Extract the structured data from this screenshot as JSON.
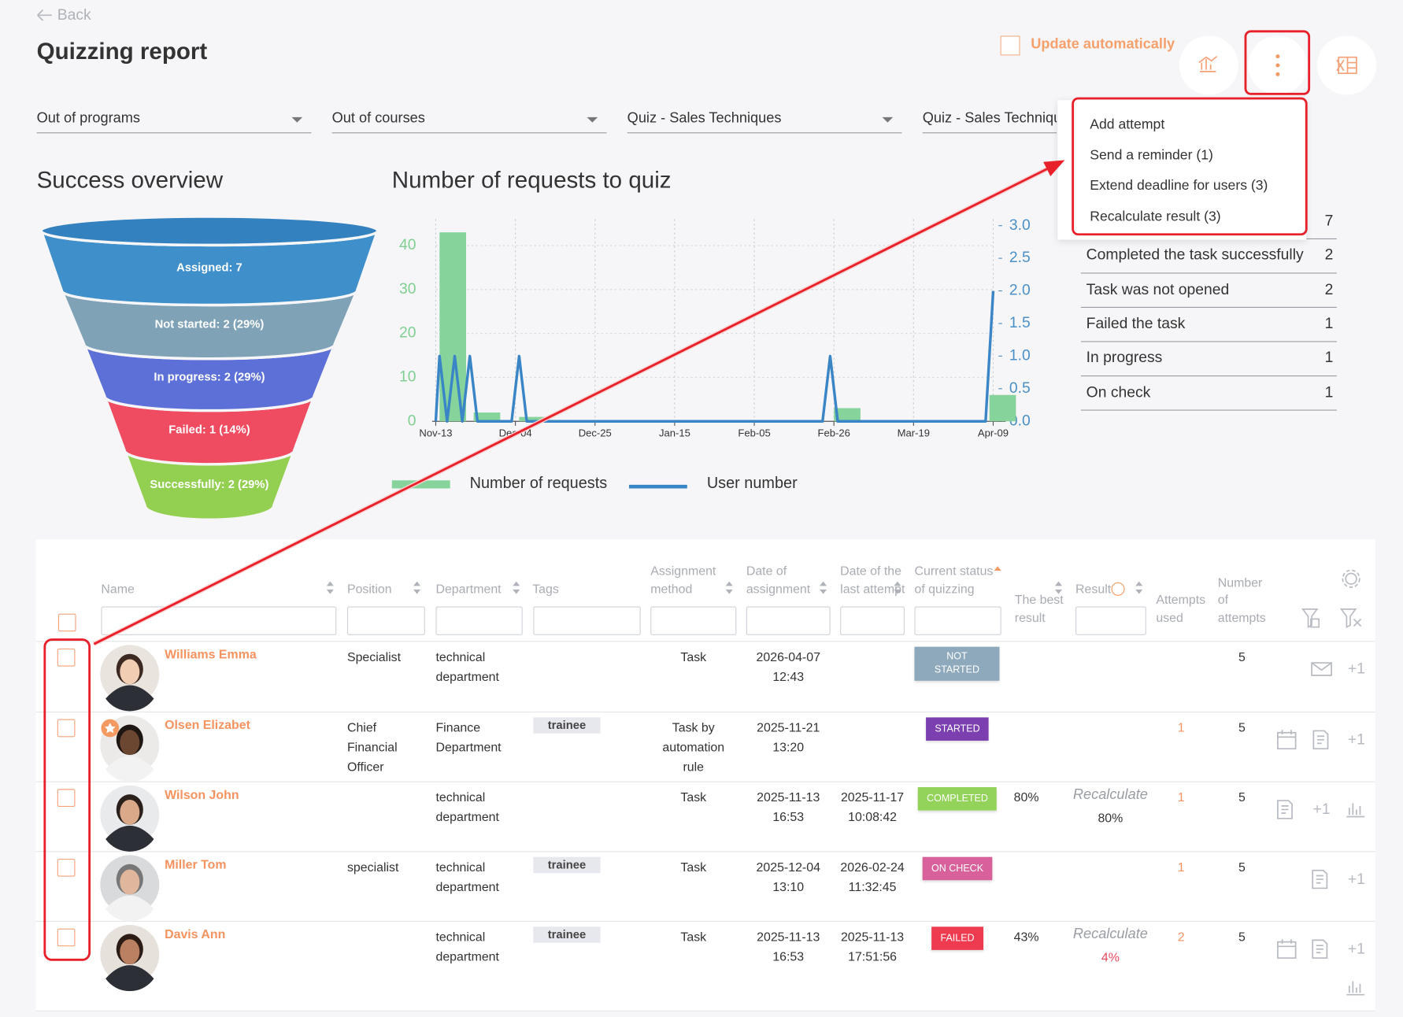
{
  "header": {
    "back": "Back",
    "title": "Quizzing report",
    "auto_update": "Update automatically"
  },
  "filters": [
    "Out of programs",
    "Out of courses",
    "Quiz - Sales Techniques",
    "Quiz - Sales Techniques"
  ],
  "menu": [
    "Add attempt",
    "Send a reminder (1)",
    "Extend deadline for users (3)",
    "Recalculate result (3)"
  ],
  "funnel": {
    "title": "Success overview",
    "segments": [
      {
        "label": "Assigned: 7",
        "color": "#3f8fcb"
      },
      {
        "label": "Not started: 2 (29%)",
        "color": "#7fa2b6"
      },
      {
        "label": "In progress: 2 (29%)",
        "color": "#5c70d8"
      },
      {
        "label": "Failed: 1 (14%)",
        "color": "#ef4b61"
      },
      {
        "label": "Successfully: 2 (29%)",
        "color": "#93cf50"
      }
    ]
  },
  "chart_data": {
    "type": "bar-line",
    "title": "Number of requests to quiz",
    "xticks": [
      "Nov-13",
      "Dec-04",
      "Dec-25",
      "Jan-15",
      "Feb-05",
      "Feb-26",
      "Mar-19",
      "Apr-09"
    ],
    "ylim": [
      0,
      46
    ],
    "yticks": [
      0,
      10,
      20,
      30,
      40
    ],
    "y2lim": [
      0,
      3.1
    ],
    "y2ticks": [
      {
        "value": 0,
        "label": "0.0"
      },
      {
        "value": 0.5,
        "label": "0.5"
      },
      {
        "value": 1,
        "label": "1.0"
      },
      {
        "value": 1.5,
        "label": "1.5"
      },
      {
        "value": 2,
        "label": "2.0"
      },
      {
        "value": 2.5,
        "label": "2.5"
      },
      {
        "value": 3,
        "label": "3.0"
      }
    ],
    "grid": true,
    "series": [
      {
        "name": "Number of requests",
        "type": "bar",
        "color": "#86d39c",
        "x": [
          "Nov-14",
          "Nov-23",
          "Dec-05",
          "Feb-26",
          "Apr-08"
        ],
        "values": [
          43,
          2,
          1,
          3,
          6
        ]
      },
      {
        "name": "User number",
        "type": "line",
        "axis": "y2",
        "color": "#3a85c6",
        "x": [
          "Nov-13",
          "Nov-14",
          "Nov-16",
          "Nov-18",
          "Nov-20",
          "Nov-22",
          "Nov-24",
          "Dec-03",
          "Dec-05",
          "Dec-07",
          "Feb-23",
          "Feb-25",
          "Feb-27",
          "Apr-07",
          "Apr-09"
        ],
        "values": [
          0,
          1,
          0,
          1,
          0,
          1,
          0,
          0,
          1,
          0,
          0,
          1,
          0,
          0,
          2
        ]
      }
    ]
  },
  "summary": {
    "rows": [
      {
        "value": 7
      },
      {
        "label": "Completed the task successfully",
        "value": 2
      },
      {
        "label": "Task was not opened",
        "value": 2
      },
      {
        "label": "Failed the task",
        "value": 1
      },
      {
        "label": "In progress",
        "value": 1
      },
      {
        "label": "On check",
        "value": 1
      }
    ]
  },
  "table": {
    "columns": [
      "Name",
      "Position",
      "Department",
      "Tags",
      "Assignment method",
      "Date of assignment",
      "Date of the last attempt",
      "Current status of quizzing",
      "The best result",
      "Result",
      "Attempts used",
      "Number of attempts"
    ],
    "rows": [
      {
        "name": "Williams Emma",
        "position": "Specialist",
        "department": "technical department",
        "method": "Task",
        "assigned": "2026-04-07 12:43",
        "status": "NOT STARTED",
        "status_color": "#8ea9bb",
        "attempts": 5,
        "action": "+1"
      },
      {
        "name": "Olsen Elizabet",
        "position": "Chief Financial Officer",
        "department": "Finance Department",
        "tag": "trainee",
        "method": "Task by automation rule",
        "assigned": "2025-11-21 13:20",
        "status": "STARTED",
        "status_color": "#7b3fb0",
        "used": 1,
        "attempts": 5,
        "action": "+1"
      },
      {
        "name": "Wilson John",
        "department": "technical department",
        "method": "Task",
        "assigned": "2025-11-13 16:53",
        "last_attempt": "2025-11-17 10:08:42",
        "status": "COMPLETED",
        "status_color": "#94d35a",
        "best": "80%",
        "result_action": "Recalculate",
        "result": "80%",
        "result_color": "#333333",
        "used": 1,
        "attempts": 5,
        "action": "+1"
      },
      {
        "name": "Miller Tom",
        "position": "specialist",
        "department": "technical department",
        "tag": "trainee",
        "method": "Task",
        "assigned": "2025-12-04 13:10",
        "last_attempt": "2026-02-24 11:32:45",
        "status": "ON CHECK",
        "status_color": "#d9619b",
        "used": 1,
        "attempts": 5,
        "action": "+1"
      },
      {
        "name": "Davis Ann",
        "department": "technical department",
        "tag": "trainee",
        "method": "Task",
        "assigned": "2025-11-13 16:53",
        "last_attempt": "2025-11-13 17:51:56",
        "status": "FAILED",
        "status_color": "#ef3b50",
        "best": "43%",
        "result_action": "Recalculate",
        "result": "4%",
        "result_color": "#e84a5f",
        "used": 2,
        "attempts": 5,
        "action": "+1"
      }
    ]
  }
}
